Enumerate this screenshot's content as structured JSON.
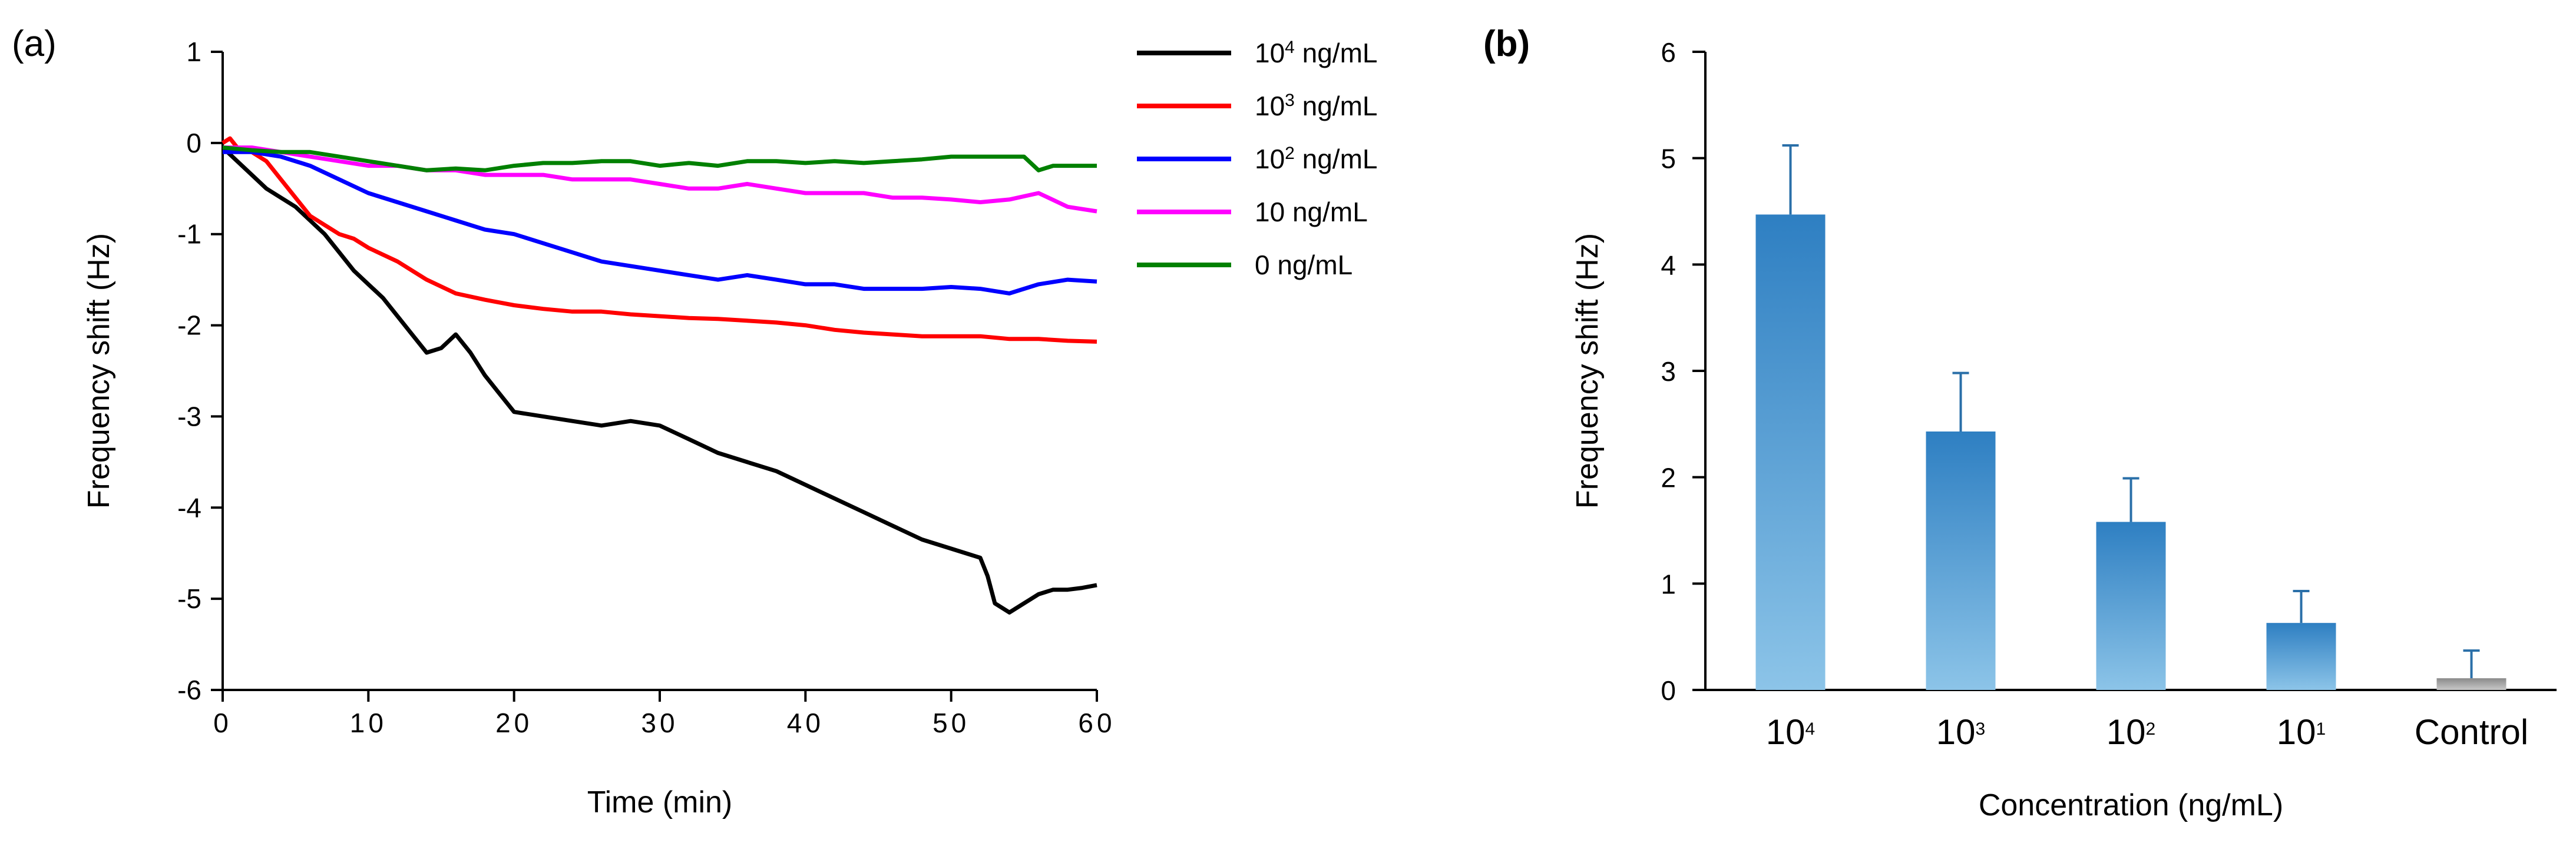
{
  "chart_data": [
    {
      "panel": "(a)",
      "type": "line",
      "xlabel": "Time (min)",
      "ylabel": "Frequency shift (Hz)",
      "xlim": [
        0,
        60
      ],
      "ylim": [
        -6,
        1
      ],
      "xticks": [
        0,
        10,
        20,
        30,
        40,
        50,
        60
      ],
      "yticks": [
        -6,
        -5,
        -4,
        -3,
        -2,
        -1,
        0,
        1
      ],
      "legend_position": "top-right outside",
      "series": [
        {
          "name": "10^4 ng/mL",
          "legend_base": "10",
          "legend_sup": "4",
          "legend_unit": "ng/mL",
          "color": "#000000",
          "x": [
            0,
            1,
            2,
            3,
            4,
            5,
            6,
            7,
            8,
            9,
            10,
            11,
            12,
            13,
            14,
            15,
            16,
            17,
            18,
            19,
            20,
            22,
            24,
            26,
            28,
            30,
            32,
            34,
            36,
            38,
            40,
            42,
            44,
            46,
            48,
            50,
            52,
            52.5,
            53,
            54,
            55,
            56,
            57,
            58,
            59,
            60
          ],
          "y": [
            -0.05,
            -0.2,
            -0.35,
            -0.5,
            -0.6,
            -0.7,
            -0.85,
            -1.0,
            -1.2,
            -1.4,
            -1.55,
            -1.7,
            -1.9,
            -2.1,
            -2.3,
            -2.25,
            -2.1,
            -2.3,
            -2.55,
            -2.75,
            -2.95,
            -3.0,
            -3.05,
            -3.1,
            -3.05,
            -3.1,
            -3.25,
            -3.4,
            -3.5,
            -3.6,
            -3.75,
            -3.9,
            -4.05,
            -4.2,
            -4.35,
            -4.45,
            -4.55,
            -4.75,
            -5.05,
            -5.15,
            -5.05,
            -4.95,
            -4.9,
            -4.9,
            -4.88,
            -4.85
          ]
        },
        {
          "name": "10^3 ng/mL",
          "legend_base": "10",
          "legend_sup": "3",
          "legend_unit": "ng/mL",
          "color": "#ff0000",
          "x": [
            0,
            0.5,
            1,
            2,
            3,
            4,
            5,
            6,
            7,
            8,
            9,
            10,
            12,
            14,
            16,
            18,
            20,
            22,
            24,
            26,
            28,
            30,
            32,
            34,
            36,
            38,
            40,
            42,
            44,
            46,
            48,
            50,
            52,
            54,
            56,
            58,
            60
          ],
          "y": [
            0,
            0.05,
            -0.05,
            -0.1,
            -0.2,
            -0.4,
            -0.6,
            -0.8,
            -0.9,
            -1.0,
            -1.05,
            -1.15,
            -1.3,
            -1.5,
            -1.65,
            -1.72,
            -1.78,
            -1.82,
            -1.85,
            -1.85,
            -1.88,
            -1.9,
            -1.92,
            -1.93,
            -1.95,
            -1.97,
            -2.0,
            -2.05,
            -2.08,
            -2.1,
            -2.12,
            -2.12,
            -2.12,
            -2.15,
            -2.15,
            -2.17,
            -2.18
          ]
        },
        {
          "name": "10^2 ng/mL",
          "legend_base": "10",
          "legend_sup": "2",
          "legend_unit": "ng/mL",
          "color": "#0000ff",
          "x": [
            0,
            2,
            4,
            6,
            8,
            10,
            12,
            14,
            16,
            18,
            20,
            22,
            24,
            26,
            28,
            30,
            32,
            34,
            36,
            38,
            40,
            42,
            44,
            46,
            48,
            50,
            52,
            54,
            56,
            58,
            60
          ],
          "y": [
            -0.1,
            -0.1,
            -0.15,
            -0.25,
            -0.4,
            -0.55,
            -0.65,
            -0.75,
            -0.85,
            -0.95,
            -1.0,
            -1.1,
            -1.2,
            -1.3,
            -1.35,
            -1.4,
            -1.45,
            -1.5,
            -1.45,
            -1.5,
            -1.55,
            -1.55,
            -1.6,
            -1.6,
            -1.6,
            -1.58,
            -1.6,
            -1.65,
            -1.55,
            -1.5,
            -1.52
          ]
        },
        {
          "name": "10 ng/mL",
          "legend_base": "10",
          "legend_sup": "",
          "legend_unit": "ng/mL",
          "color": "#ff00ff",
          "x": [
            0,
            2,
            4,
            6,
            8,
            10,
            12,
            14,
            16,
            18,
            20,
            22,
            24,
            26,
            28,
            30,
            32,
            34,
            36,
            38,
            40,
            42,
            44,
            46,
            48,
            50,
            52,
            54,
            56,
            58,
            60
          ],
          "y": [
            -0.05,
            -0.05,
            -0.1,
            -0.15,
            -0.2,
            -0.25,
            -0.25,
            -0.3,
            -0.3,
            -0.35,
            -0.35,
            -0.35,
            -0.4,
            -0.4,
            -0.4,
            -0.45,
            -0.5,
            -0.5,
            -0.45,
            -0.5,
            -0.55,
            -0.55,
            -0.55,
            -0.6,
            -0.6,
            -0.62,
            -0.65,
            -0.62,
            -0.55,
            -0.7,
            -0.75
          ]
        },
        {
          "name": "0 ng/mL",
          "legend_base": "0",
          "legend_sup": "",
          "legend_unit": "ng/mL",
          "color": "#008000",
          "x": [
            0,
            2,
            4,
            6,
            8,
            10,
            12,
            14,
            16,
            18,
            20,
            22,
            24,
            26,
            28,
            30,
            32,
            34,
            36,
            38,
            40,
            42,
            44,
            46,
            48,
            50,
            52,
            54,
            55,
            56,
            57,
            58,
            60
          ],
          "y": [
            -0.05,
            -0.08,
            -0.1,
            -0.1,
            -0.15,
            -0.2,
            -0.25,
            -0.3,
            -0.28,
            -0.3,
            -0.25,
            -0.22,
            -0.22,
            -0.2,
            -0.2,
            -0.25,
            -0.22,
            -0.25,
            -0.2,
            -0.2,
            -0.22,
            -0.2,
            -0.22,
            -0.2,
            -0.18,
            -0.15,
            -0.15,
            -0.15,
            -0.15,
            -0.3,
            -0.25,
            -0.25,
            -0.25
          ]
        }
      ]
    },
    {
      "panel": "(b)",
      "type": "bar",
      "xlabel": "Concentration (ng/mL)",
      "ylabel": "Frequency shift (Hz)",
      "ylim": [
        0,
        6
      ],
      "yticks": [
        0,
        1,
        2,
        3,
        4,
        5,
        6
      ],
      "categories": [
        {
          "base": "10",
          "sup": "4"
        },
        {
          "base": "10",
          "sup": "3"
        },
        {
          "base": "10",
          "sup": "2"
        },
        {
          "base": "10",
          "sup": "1"
        },
        {
          "base": "Control",
          "sup": ""
        }
      ],
      "values": [
        4.47,
        2.43,
        1.58,
        0.63,
        0.11
      ],
      "errors": [
        0.65,
        0.55,
        0.41,
        0.3,
        0.26
      ],
      "bar_colors": [
        "#2e86c8",
        "#2e86c8",
        "#2e86c8",
        "#2e86c8",
        "#a0a0a0"
      ]
    }
  ]
}
